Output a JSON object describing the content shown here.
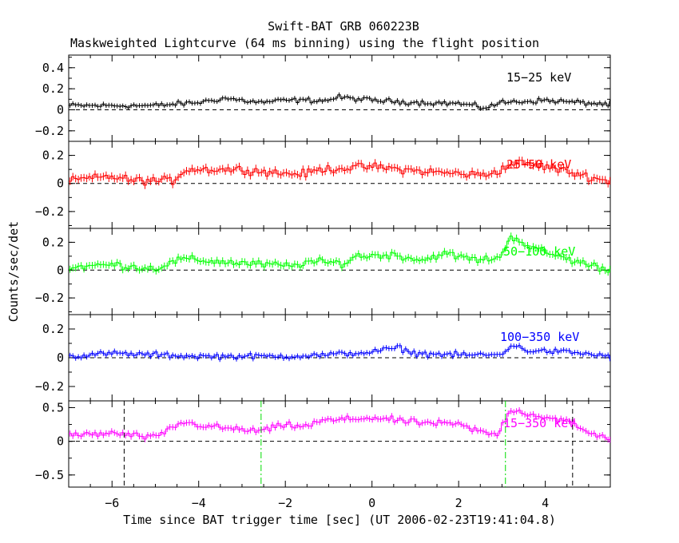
{
  "chart_data": {
    "type": "line",
    "title": "Swift-BAT GRB 060223B",
    "subtitle": "Maskweighted Lightcurve (64 ms binning) using the flight position",
    "xlabel": "Time since BAT trigger time [sec] (UT 2006-02-23T19:41:04.8)",
    "ylabel": "Counts/sec/det",
    "xlim": [
      -7.0,
      5.5
    ],
    "x_ticks": [
      -6,
      -4,
      -2,
      0,
      2,
      4
    ],
    "x_tick_labels": [
      "−6",
      "−4",
      "−2",
      "0",
      "2",
      "4"
    ],
    "bin_width": 0.064,
    "grid": false,
    "legend": "top-right",
    "vlines": {
      "black_dashed": [
        -5.72,
        4.63
      ],
      "green_dashdot": [
        -2.56,
        3.08
      ]
    },
    "panels": [
      {
        "name": "15−25 keV",
        "color": "#000000",
        "ylim": [
          -0.3,
          0.52
        ],
        "y_ticks": [
          -0.2,
          0,
          0.2,
          0.4
        ],
        "y_tick_labels": [
          "−0.2",
          "0",
          "0.2",
          "0.4"
        ],
        "profile": [
          [
            -7.0,
            0.04
          ],
          [
            -5.0,
            0.04
          ],
          [
            -4.0,
            0.07
          ],
          [
            -3.4,
            0.11
          ],
          [
            -2.6,
            0.07
          ],
          [
            -2.0,
            0.09
          ],
          [
            -1.0,
            0.09
          ],
          [
            -0.8,
            0.12
          ],
          [
            0.0,
            0.09
          ],
          [
            1.0,
            0.07
          ],
          [
            2.0,
            0.06
          ],
          [
            2.6,
            0.02
          ],
          [
            3.0,
            0.07
          ],
          [
            4.0,
            0.09
          ],
          [
            5.5,
            0.05
          ]
        ],
        "noise": 0.025
      },
      {
        "name": "25−50 keV",
        "color": "#ff0000",
        "ylim": [
          -0.32,
          0.3
        ],
        "y_ticks": [
          -0.2,
          0,
          0.2
        ],
        "y_tick_labels": [
          "−0.2",
          "0",
          "0.2"
        ],
        "profile": [
          [
            -7.0,
            0.02
          ],
          [
            -6.0,
            0.05
          ],
          [
            -5.5,
            0.02
          ],
          [
            -4.6,
            0.02
          ],
          [
            -4.3,
            0.1
          ],
          [
            -3.0,
            0.1
          ],
          [
            -2.0,
            0.07
          ],
          [
            -1.5,
            0.07
          ],
          [
            -1.2,
            0.1
          ],
          [
            0.0,
            0.12
          ],
          [
            1.0,
            0.09
          ],
          [
            2.0,
            0.07
          ],
          [
            2.6,
            0.06
          ],
          [
            3.0,
            0.1
          ],
          [
            3.3,
            0.15
          ],
          [
            4.0,
            0.12
          ],
          [
            5.0,
            0.05
          ],
          [
            5.5,
            0.01
          ]
        ],
        "noise": 0.03
      },
      {
        "name": "50−100 keV",
        "color": "#00ff00",
        "ylim": [
          -0.32,
          0.3
        ],
        "y_ticks": [
          -0.2,
          0,
          0.2
        ],
        "y_tick_labels": [
          "−0.2",
          "0",
          "0.2"
        ],
        "profile": [
          [
            -7.0,
            0.02
          ],
          [
            -6.0,
            0.04
          ],
          [
            -5.0,
            0.01
          ],
          [
            -4.4,
            0.08
          ],
          [
            -3.5,
            0.06
          ],
          [
            -2.5,
            0.04
          ],
          [
            -1.8,
            0.03
          ],
          [
            -1.5,
            0.06
          ],
          [
            -0.6,
            0.05
          ],
          [
            -0.4,
            0.1
          ],
          [
            0.5,
            0.11
          ],
          [
            1.2,
            0.07
          ],
          [
            1.6,
            0.12
          ],
          [
            2.5,
            0.07
          ],
          [
            3.0,
            0.1
          ],
          [
            3.2,
            0.25
          ],
          [
            3.7,
            0.16
          ],
          [
            4.5,
            0.08
          ],
          [
            5.5,
            0.0
          ]
        ],
        "noise": 0.028
      },
      {
        "name": "100−350 keV",
        "color": "#0000ff",
        "ylim": [
          -0.3,
          0.3
        ],
        "y_ticks": [
          -0.2,
          0,
          0.2
        ],
        "y_tick_labels": [
          "−0.2",
          "0",
          "0.2"
        ],
        "profile": [
          [
            -7.0,
            0.01
          ],
          [
            -6.0,
            0.03
          ],
          [
            -4.0,
            0.01
          ],
          [
            -2.0,
            0.01
          ],
          [
            -1.0,
            0.02
          ],
          [
            0.0,
            0.04
          ],
          [
            0.6,
            0.07
          ],
          [
            1.0,
            0.03
          ],
          [
            2.0,
            0.02
          ],
          [
            3.0,
            0.02
          ],
          [
            3.2,
            0.09
          ],
          [
            3.6,
            0.05
          ],
          [
            4.5,
            0.04
          ],
          [
            5.5,
            0.01
          ]
        ],
        "noise": 0.02
      },
      {
        "name": "15−350 keV",
        "color": "#ff00ff",
        "ylim": [
          -0.68,
          0.6
        ],
        "y_ticks": [
          -0.5,
          0,
          0.5
        ],
        "y_tick_labels": [
          "−0.5",
          "0",
          "0.5"
        ],
        "profile": [
          [
            -7.0,
            0.08
          ],
          [
            -6.0,
            0.12
          ],
          [
            -5.0,
            0.05
          ],
          [
            -4.4,
            0.28
          ],
          [
            -3.5,
            0.2
          ],
          [
            -2.6,
            0.15
          ],
          [
            -2.0,
            0.24
          ],
          [
            -1.5,
            0.22
          ],
          [
            -1.2,
            0.3
          ],
          [
            0.0,
            0.35
          ],
          [
            1.0,
            0.28
          ],
          [
            2.0,
            0.25
          ],
          [
            2.6,
            0.12
          ],
          [
            2.9,
            0.1
          ],
          [
            3.2,
            0.48
          ],
          [
            3.5,
            0.42
          ],
          [
            4.5,
            0.3
          ],
          [
            5.0,
            0.12
          ],
          [
            5.5,
            0.05
          ]
        ],
        "noise": 0.05
      }
    ]
  }
}
